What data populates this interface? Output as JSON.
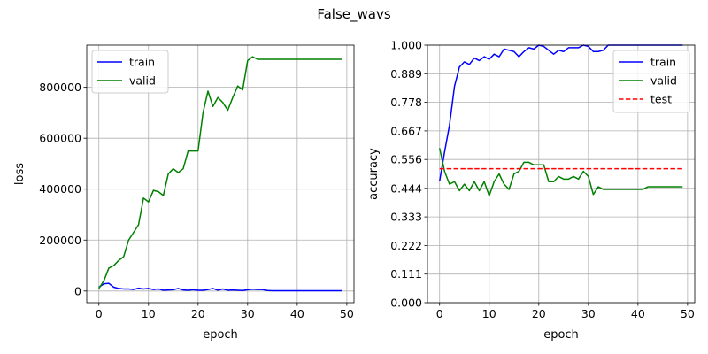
{
  "figure": {
    "suptitle": "False_wavs"
  },
  "colors": {
    "train": "#0000ff",
    "valid": "#008000",
    "test": "#ff0000",
    "grid": "#b0b0b0",
    "axis": "#000000"
  },
  "chart_data": [
    {
      "type": "line",
      "xlabel": "epoch",
      "ylabel": "loss",
      "xlim": [
        -2.45,
        51.45
      ],
      "ylim": [
        -45850,
        965600
      ],
      "grid": true,
      "legend_position": "upper-left",
      "x_ticks": [
        0,
        10,
        20,
        30,
        40,
        50
      ],
      "x_tick_labels": [
        "0",
        "10",
        "20",
        "30",
        "40",
        "50"
      ],
      "y_ticks": [
        0,
        200000,
        400000,
        600000,
        800000
      ],
      "y_tick_labels": [
        "0",
        "200000",
        "400000",
        "600000",
        "800000"
      ],
      "series": [
        {
          "name": "train",
          "color_key": "train",
          "style": "solid",
          "x": [
            0,
            1,
            2,
            3,
            4,
            5,
            6,
            7,
            8,
            9,
            10,
            11,
            12,
            13,
            14,
            15,
            16,
            17,
            18,
            19,
            20,
            21,
            22,
            23,
            24,
            25,
            26,
            27,
            28,
            29,
            30,
            31,
            32,
            33,
            34,
            35,
            36,
            37,
            38,
            39,
            40,
            41,
            42,
            43,
            44,
            45,
            46,
            47,
            48,
            49
          ],
          "y": [
            15000,
            28000,
            30000,
            15000,
            10000,
            8000,
            8000,
            6000,
            11000,
            8000,
            10000,
            6000,
            8000,
            3000,
            4000,
            5000,
            10000,
            4000,
            3000,
            5000,
            3000,
            3000,
            6000,
            10000,
            3000,
            8000,
            3000,
            4000,
            3000,
            2000,
            5000,
            7000,
            6000,
            6000,
            2000,
            1000,
            1000,
            1000,
            1000,
            1000,
            1000,
            1000,
            1000,
            1000,
            1000,
            1000,
            1000,
            1000,
            1000,
            1000
          ]
        },
        {
          "name": "valid",
          "color_key": "valid",
          "style": "solid",
          "x": [
            0,
            1,
            2,
            3,
            4,
            5,
            6,
            7,
            8,
            9,
            10,
            11,
            12,
            13,
            14,
            15,
            16,
            17,
            18,
            19,
            20,
            21,
            22,
            23,
            24,
            25,
            26,
            27,
            28,
            29,
            30,
            31,
            32,
            33,
            34,
            35,
            36,
            37,
            38,
            39,
            40,
            41,
            42,
            43,
            44,
            45,
            46,
            47,
            48,
            49
          ],
          "y": [
            10000,
            40000,
            90000,
            100000,
            120000,
            135000,
            200000,
            230000,
            260000,
            365000,
            350000,
            395000,
            390000,
            375000,
            460000,
            480000,
            465000,
            480000,
            550000,
            550000,
            550000,
            700000,
            785000,
            725000,
            760000,
            740000,
            710000,
            760000,
            805000,
            790000,
            905000,
            920000,
            910000,
            910000,
            910000,
            910000,
            910000,
            910000,
            910000,
            910000,
            910000,
            910000,
            910000,
            910000,
            910000,
            910000,
            910000,
            910000,
            910000,
            910000
          ]
        }
      ]
    },
    {
      "type": "line",
      "xlabel": "epoch",
      "ylabel": "accuracy",
      "xlim": [
        -2.45,
        51.45
      ],
      "ylim": [
        0,
        1
      ],
      "grid": true,
      "legend_position": "upper-right",
      "x_ticks": [
        0,
        10,
        20,
        30,
        40,
        50
      ],
      "x_tick_labels": [
        "0",
        "10",
        "20",
        "30",
        "40",
        "50"
      ],
      "y_ticks": [
        0,
        0.111,
        0.222,
        0.333,
        0.444,
        0.556,
        0.667,
        0.778,
        0.889,
        1.0
      ],
      "y_tick_labels": [
        "0.000",
        "0.111",
        "0.222",
        "0.333",
        "0.444",
        "0.556",
        "0.667",
        "0.778",
        "0.889",
        "1.000"
      ],
      "series": [
        {
          "name": "train",
          "color_key": "train",
          "style": "solid",
          "x": [
            0,
            1,
            2,
            3,
            4,
            5,
            6,
            7,
            8,
            9,
            10,
            11,
            12,
            13,
            14,
            15,
            16,
            17,
            18,
            19,
            20,
            21,
            22,
            23,
            24,
            25,
            26,
            27,
            28,
            29,
            30,
            31,
            32,
            33,
            34,
            35,
            36,
            37,
            38,
            39,
            40,
            41,
            42,
            43,
            44,
            45,
            46,
            47,
            48,
            49
          ],
          "y": [
            0.472,
            0.585,
            0.69,
            0.84,
            0.915,
            0.935,
            0.925,
            0.95,
            0.94,
            0.955,
            0.945,
            0.965,
            0.955,
            0.985,
            0.98,
            0.975,
            0.955,
            0.975,
            0.99,
            0.985,
            1.0,
            0.995,
            0.98,
            0.965,
            0.98,
            0.975,
            0.99,
            0.99,
            0.99,
            1.0,
            0.995,
            0.975,
            0.975,
            0.98,
            1.0,
            1.0,
            1.0,
            1.0,
            1.0,
            1.0,
            1.0,
            1.0,
            1.0,
            1.0,
            1.0,
            1.0,
            1.0,
            1.0,
            1.0,
            1.0
          ]
        },
        {
          "name": "valid",
          "color_key": "valid",
          "style": "solid",
          "x": [
            0,
            1,
            2,
            3,
            4,
            5,
            6,
            7,
            8,
            9,
            10,
            11,
            12,
            13,
            14,
            15,
            16,
            17,
            18,
            19,
            20,
            21,
            22,
            23,
            24,
            25,
            26,
            27,
            28,
            29,
            30,
            31,
            32,
            33,
            34,
            35,
            36,
            37,
            38,
            39,
            40,
            41,
            42,
            43,
            44,
            45,
            46,
            47,
            48,
            49
          ],
          "y": [
            0.6,
            0.51,
            0.46,
            0.47,
            0.435,
            0.46,
            0.435,
            0.47,
            0.435,
            0.47,
            0.415,
            0.47,
            0.5,
            0.46,
            0.44,
            0.5,
            0.51,
            0.545,
            0.545,
            0.535,
            0.535,
            0.535,
            0.47,
            0.47,
            0.49,
            0.48,
            0.48,
            0.49,
            0.48,
            0.51,
            0.49,
            0.42,
            0.45,
            0.44,
            0.44,
            0.44,
            0.44,
            0.44,
            0.44,
            0.44,
            0.44,
            0.44,
            0.45,
            0.45,
            0.45,
            0.45,
            0.45,
            0.45,
            0.45,
            0.45
          ]
        },
        {
          "name": "test",
          "color_key": "test",
          "style": "dashed",
          "x": [
            0,
            49
          ],
          "y": [
            0.52,
            0.52
          ]
        }
      ]
    }
  ]
}
